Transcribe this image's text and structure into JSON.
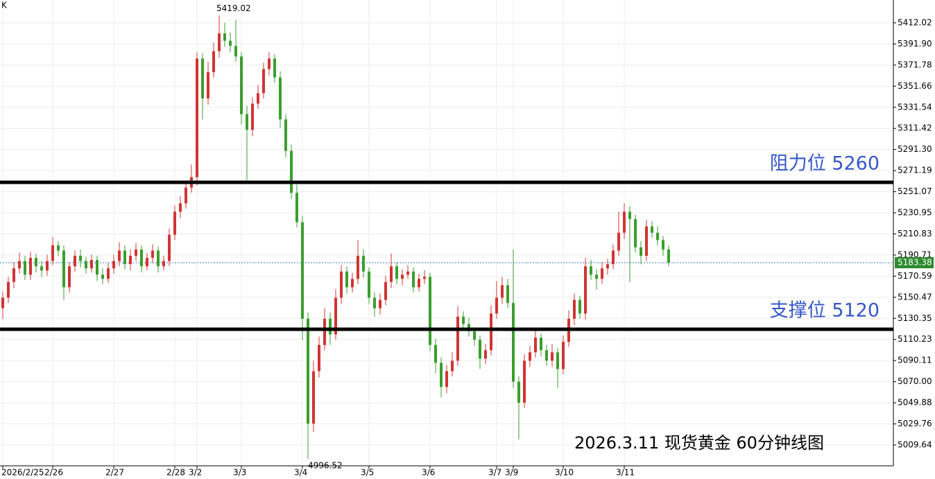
{
  "chart_data": {
    "type": "candlestick",
    "corner_text": "K",
    "title": "2026.3.11 现货黄金 60分钟线图",
    "categories": [
      "2026/2/25",
      null,
      null,
      null,
      null,
      null,
      null,
      null,
      null,
      "2/26",
      null,
      null,
      null,
      null,
      null,
      null,
      null,
      null,
      null,
      null,
      "2/27",
      null,
      null,
      null,
      null,
      null,
      null,
      null,
      null,
      null,
      null,
      "2/28",
      null,
      null,
      null,
      "3/2",
      null,
      null,
      null,
      null,
      null,
      null,
      null,
      "3/3",
      null,
      null,
      null,
      null,
      null,
      null,
      null,
      null,
      null,
      null,
      "3/4",
      null,
      null,
      null,
      null,
      null,
      null,
      null,
      null,
      null,
      null,
      null,
      "3/5",
      null,
      null,
      null,
      null,
      null,
      null,
      null,
      null,
      null,
      null,
      "3/6",
      null,
      null,
      null,
      null,
      null,
      null,
      null,
      null,
      null,
      null,
      null,
      "3/7",
      null,
      null,
      "3/9",
      null,
      null,
      null,
      null,
      null,
      null,
      null,
      null,
      "3/10",
      null,
      null,
      null,
      null,
      null,
      null,
      null,
      null,
      null,
      null,
      "3/11",
      null,
      null,
      null,
      null,
      null,
      null,
      null,
      null
    ],
    "open": [
      5140,
      5150,
      5165,
      5178,
      5185,
      5172,
      5188,
      5180,
      5176,
      5185,
      5200,
      5195,
      5160,
      5180,
      5190,
      5185,
      5178,
      5186,
      5172,
      5168,
      5178,
      5185,
      5195,
      5182,
      5190,
      5196,
      5180,
      5188,
      5195,
      5180,
      5185,
      5210,
      5232,
      5240,
      5255,
      5265,
      5378,
      5340,
      5365,
      5385,
      5402,
      5395,
      5390,
      5380,
      5325,
      5310,
      5335,
      5345,
      5368,
      5378,
      5360,
      5320,
      5290,
      5250,
      5222,
      5130,
      5030,
      5080,
      5105,
      5130,
      5115,
      5150,
      5175,
      5160,
      5168,
      5190,
      5175,
      5150,
      5140,
      5148,
      5165,
      5180,
      5168,
      5172,
      5175,
      5160,
      5168,
      5170,
      5105,
      5088,
      5065,
      5080,
      5090,
      5132,
      5125,
      5118,
      5110,
      5092,
      5100,
      5135,
      5150,
      5162,
      5145,
      5070,
      5050,
      5090,
      5098,
      5112,
      5100,
      5090,
      5098,
      5082,
      5108,
      5130,
      5148,
      5135,
      5180,
      5172,
      5168,
      5178,
      5182,
      5195,
      5212,
      5232,
      5225,
      5198,
      5190,
      5218,
      5212,
      5205,
      5196
    ],
    "high": [
      5156,
      5170,
      5184,
      5193,
      5190,
      5194,
      5192,
      5185,
      5191,
      5208,
      5204,
      5200,
      5184,
      5195,
      5196,
      5189,
      5191,
      5190,
      5178,
      5183,
      5191,
      5203,
      5200,
      5196,
      5202,
      5200,
      5193,
      5201,
      5199,
      5190,
      5216,
      5238,
      5247,
      5261,
      5277,
      5384,
      5383,
      5375,
      5393,
      5419.02,
      5412,
      5403,
      5415,
      5384,
      5333,
      5341,
      5353,
      5374,
      5384,
      5382,
      5366,
      5325,
      5296,
      5258,
      5228,
      5136,
      5090,
      5113,
      5140,
      5136,
      5158,
      5181,
      5180,
      5174,
      5205,
      5196,
      5179,
      5155,
      5154,
      5171,
      5192,
      5184,
      5177,
      5181,
      5179,
      5173,
      5176,
      5174,
      5111,
      5093,
      5086,
      5098,
      5142,
      5137,
      5131,
      5122,
      5114,
      5106,
      5143,
      5166,
      5170,
      5168,
      5196,
      5075,
      5096,
      5104,
      5120,
      5116,
      5105,
      5106,
      5102,
      5114,
      5138,
      5154,
      5152,
      5188,
      5186,
      5177,
      5184,
      5187,
      5201,
      5232,
      5240,
      5237,
      5229,
      5204,
      5224,
      5223,
      5218,
      5209,
      5200
    ],
    "low": [
      5130,
      5145,
      5159,
      5173,
      5167,
      5167,
      5174,
      5170,
      5171,
      5181,
      5190,
      5148,
      5155,
      5175,
      5179,
      5173,
      5174,
      5166,
      5163,
      5164,
      5173,
      5180,
      5177,
      5176,
      5185,
      5174,
      5176,
      5183,
      5174,
      5176,
      5180,
      5205,
      5226,
      5235,
      5250,
      5257,
      5320,
      5334,
      5360,
      5379,
      5389,
      5384,
      5375,
      5315,
      5262,
      5304,
      5330,
      5340,
      5362,
      5355,
      5312,
      5284,
      5244,
      5217,
      5110,
      4996.52,
      5022,
      5074,
      5100,
      5105,
      5110,
      5144,
      5154,
      5155,
      5163,
      5169,
      5144,
      5132,
      5134,
      5143,
      5159,
      5163,
      5162,
      5168,
      5155,
      5156,
      5163,
      5099,
      5078,
      5055,
      5059,
      5075,
      5085,
      5119,
      5113,
      5104,
      5082,
      5087,
      5095,
      5130,
      5144,
      5140,
      5064,
      5015,
      5045,
      5084,
      5093,
      5094,
      5085,
      5084,
      5064,
      5077,
      5103,
      5124,
      5130,
      5129,
      5167,
      5158,
      5163,
      5172,
      5177,
      5190,
      5206,
      5165,
      5193,
      5182,
      5185,
      5207,
      5200,
      5190,
      5180
    ],
    "close": [
      5150,
      5165,
      5178,
      5185,
      5172,
      5188,
      5180,
      5176,
      5185,
      5200,
      5195,
      5160,
      5180,
      5190,
      5185,
      5178,
      5186,
      5172,
      5168,
      5178,
      5185,
      5195,
      5182,
      5190,
      5196,
      5180,
      5188,
      5195,
      5180,
      5185,
      5210,
      5232,
      5240,
      5255,
      5265,
      5378,
      5340,
      5365,
      5385,
      5402,
      5395,
      5390,
      5380,
      5325,
      5310,
      5335,
      5345,
      5368,
      5378,
      5360,
      5320,
      5290,
      5250,
      5222,
      5130,
      5030,
      5080,
      5105,
      5130,
      5115,
      5150,
      5175,
      5160,
      5168,
      5190,
      5175,
      5150,
      5140,
      5148,
      5165,
      5180,
      5168,
      5172,
      5175,
      5160,
      5168,
      5170,
      5105,
      5088,
      5065,
      5080,
      5090,
      5132,
      5125,
      5118,
      5110,
      5092,
      5100,
      5135,
      5150,
      5162,
      5145,
      5070,
      5050,
      5090,
      5098,
      5112,
      5100,
      5090,
      5098,
      5082,
      5108,
      5130,
      5148,
      5135,
      5180,
      5172,
      5168,
      5178,
      5182,
      5195,
      5212,
      5232,
      5225,
      5198,
      5190,
      5218,
      5212,
      5205,
      5196,
      5183.38
    ],
    "up_color": "#d03434",
    "down_color": "#3a9e2e",
    "last_color": "#2e8b2e",
    "line_color": "#000000",
    "label_color": "#3557c8",
    "ylim": [
      4989.8,
      5433.8
    ],
    "yticks": [
      5009.64,
      5029.76,
      5049.88,
      {
        "value": 5070,
        "label": "5070.00"
      },
      5090.11,
      5110.23,
      5130.35,
      5150.47,
      5170.59,
      5190.71,
      5210.83,
      5230.95,
      5251.07,
      5271.19,
      {
        "value": 5291.3,
        "label": "5291.30"
      },
      5311.42,
      5331.54,
      5351.66,
      5371.78,
      {
        "value": 5391.9,
        "label": "5391.90"
      },
      5412.02
    ],
    "grid": true,
    "hlines": [
      {
        "value": 5260,
        "label": "阻力位 5260"
      },
      {
        "value": 5120,
        "label": "支撑位 5120"
      }
    ]
  }
}
